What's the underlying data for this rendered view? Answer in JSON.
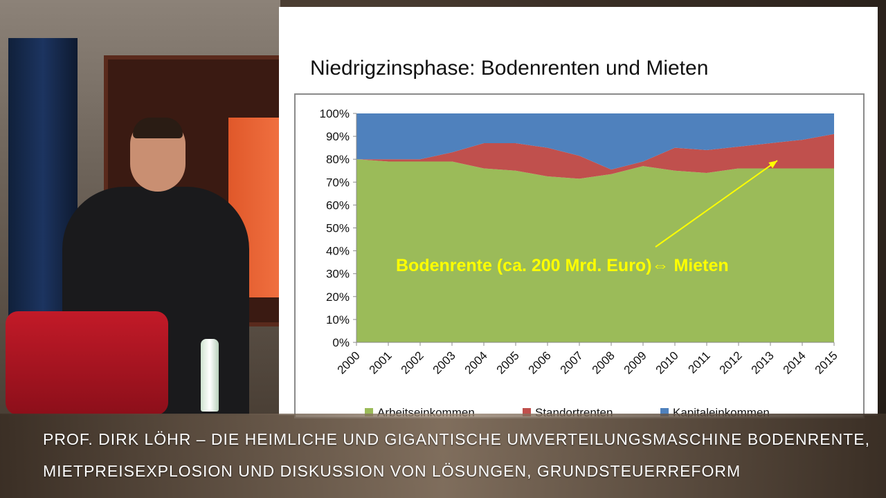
{
  "slide": {
    "title": "Niedrigzinsphase:  Bodenrenten und Mieten"
  },
  "chart_data": {
    "type": "area",
    "stacked": true,
    "percent": true,
    "title": "",
    "xlabel": "",
    "ylabel": "",
    "x": [
      "2000",
      "2001",
      "2002",
      "2003",
      "2004",
      "2005",
      "2006",
      "2007",
      "2008",
      "2009",
      "2010",
      "2011",
      "2012",
      "2013",
      "2014",
      "2015"
    ],
    "y_ticks": [
      "0%",
      "10%",
      "20%",
      "30%",
      "40%",
      "50%",
      "60%",
      "70%",
      "80%",
      "90%",
      "100%"
    ],
    "ylim": [
      0,
      100
    ],
    "grid": false,
    "legend_position": "bottom",
    "series": [
      {
        "name": "Arbeitseinkommen",
        "color": "#9bbb59",
        "values": [
          80,
          79,
          79,
          79,
          76,
          75,
          72.5,
          71.5,
          73.5,
          77,
          75,
          74,
          76,
          76,
          76,
          76
        ]
      },
      {
        "name": "Standortrenten",
        "color": "#c0504d",
        "values": [
          0,
          1,
          1,
          4,
          11,
          12,
          12.5,
          10,
          2,
          2,
          10,
          10,
          9.5,
          11,
          12.5,
          15
        ]
      },
      {
        "name": "Kapitaleinkommen",
        "color": "#4f81bd",
        "values": [
          20,
          20,
          20,
          17,
          13,
          13,
          15,
          18.5,
          24.5,
          21,
          15,
          16,
          14.5,
          13,
          11.5,
          9
        ]
      }
    ],
    "annotation": {
      "text": "Bodenrente (ca. 200 Mrd. Euro)⇔ Mieten",
      "color": "#ffff00",
      "arrow_to": {
        "x": "2013",
        "y": 80
      }
    }
  },
  "caption": {
    "line1": "PROF. DIRK LÖHR – DIE HEIMLICHE UND GIGANTISCHE UMVERTEILUNGSMASCHINE BODENRENTE,",
    "line2": "MIETPREISEXPLOSION UND DISKUSSION VON LÖSUNGEN, GRUNDSTEUERREFORM"
  }
}
